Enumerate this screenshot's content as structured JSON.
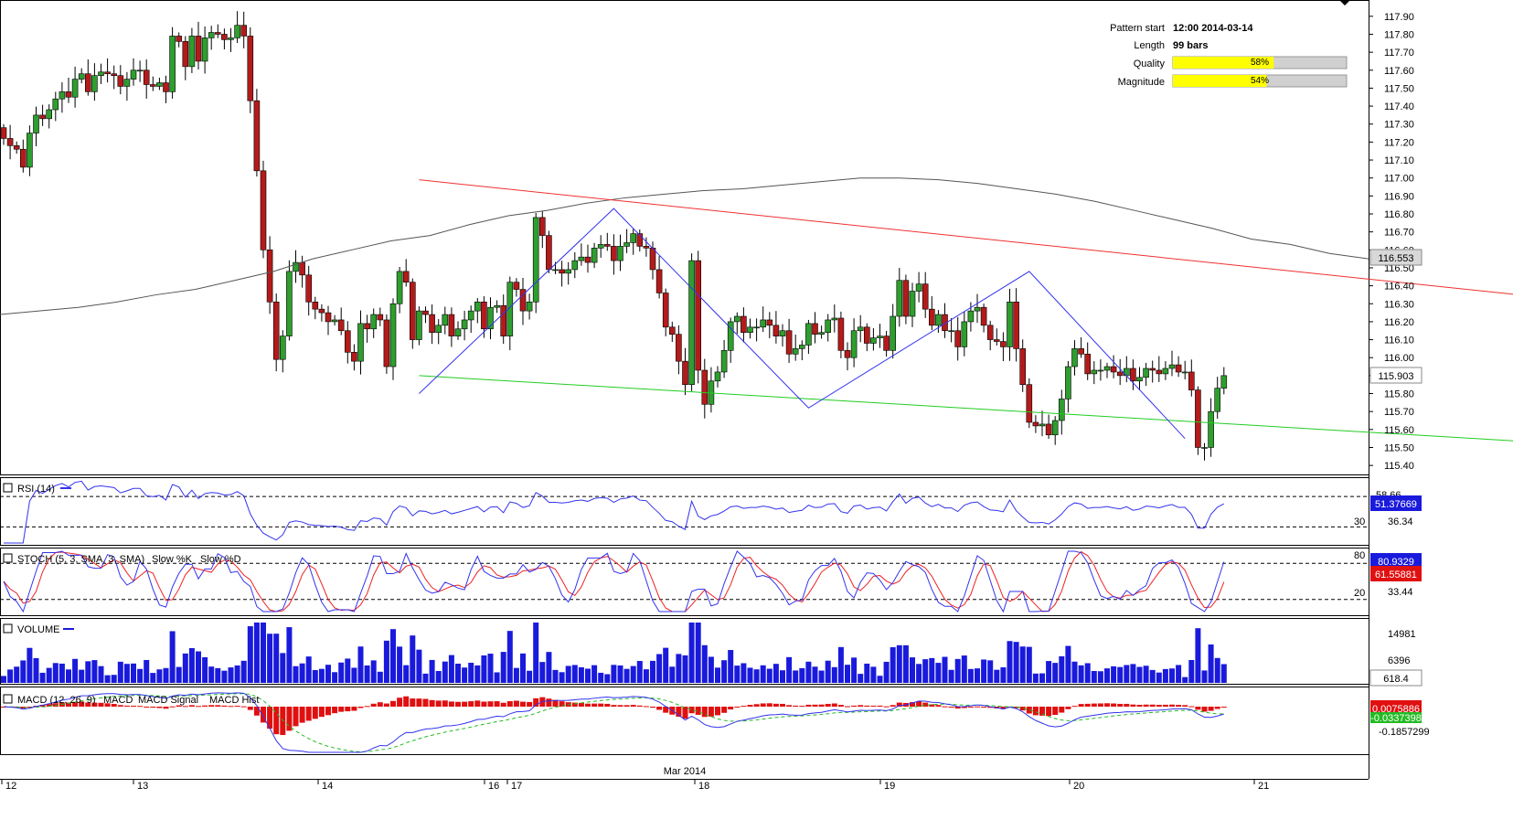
{
  "chart_data": {
    "type": "candlestick",
    "price_panel": {
      "ylim": [
        115.36,
        117.95
      ],
      "y_ticks": [
        "117.90",
        "117.80",
        "117.70",
        "117.60",
        "117.50",
        "117.40",
        "117.30",
        "117.20",
        "117.10",
        "117.00",
        "116.90",
        "116.80",
        "116.70",
        "116.60",
        "116.50",
        "116.40",
        "116.30",
        "116.20",
        "116.10",
        "116.00",
        "115.90",
        "115.80",
        "115.70",
        "115.60",
        "115.50",
        "115.40"
      ],
      "y_tick_values": [
        117.9,
        117.8,
        117.7,
        117.6,
        117.5,
        117.4,
        117.3,
        117.2,
        117.1,
        117.0,
        116.9,
        116.8,
        116.7,
        116.6,
        116.5,
        116.4,
        116.3,
        116.2,
        116.1,
        116.0,
        115.9,
        115.8,
        115.7,
        115.6,
        115.5,
        115.4
      ],
      "closes": [
        117.22,
        117.18,
        117.16,
        117.06,
        117.25,
        117.35,
        117.33,
        117.38,
        117.44,
        117.48,
        117.45,
        117.55,
        117.58,
        117.48,
        117.57,
        117.59,
        117.58,
        117.57,
        117.51,
        117.55,
        117.6,
        117.6,
        117.52,
        117.51,
        117.53,
        117.48,
        117.79,
        117.76,
        117.62,
        117.79,
        117.65,
        117.78,
        117.81,
        117.8,
        117.77,
        117.78,
        117.85,
        117.79,
        117.43,
        117.04,
        116.6,
        116.31,
        115.99,
        116.12,
        116.48,
        116.53,
        116.46,
        116.31,
        116.27,
        116.25,
        116.2,
        116.21,
        116.15,
        116.03,
        115.98,
        116.19,
        116.16,
        116.24,
        116.21,
        115.95,
        116.3,
        116.48,
        116.42,
        116.1,
        116.26,
        116.24,
        116.14,
        116.18,
        116.24,
        116.12,
        116.16,
        116.21,
        116.26,
        116.31,
        116.16,
        116.28,
        116.29,
        116.12,
        116.42,
        116.38,
        116.26,
        116.31,
        116.78,
        116.68,
        116.49,
        116.49,
        116.47,
        116.49,
        116.54,
        116.56,
        116.53,
        116.61,
        116.63,
        116.62,
        116.54,
        116.62,
        116.64,
        116.69,
        116.62,
        116.61,
        116.49,
        116.36,
        116.17,
        116.13,
        115.98,
        115.85,
        116.54,
        115.93,
        115.74,
        115.87,
        115.92,
        116.04,
        116.2,
        116.23,
        116.14,
        116.17,
        116.17,
        116.21,
        116.18,
        116.12,
        116.15,
        116.02,
        116.05,
        116.07,
        116.19,
        116.13,
        116.14,
        116.21,
        116.22,
        116.04,
        116.0,
        116.15,
        116.17,
        116.08,
        116.11,
        116.12,
        116.04,
        116.23,
        116.43,
        116.23,
        116.37,
        116.41,
        116.27,
        116.18,
        116.24,
        116.15,
        116.15,
        116.06,
        116.2,
        116.26,
        116.28,
        116.18,
        116.1,
        116.09,
        116.06,
        116.31,
        116.05,
        115.85,
        115.64,
        115.62,
        115.63,
        115.57,
        115.65,
        115.77,
        115.95,
        116.05,
        116.02,
        115.91,
        115.93,
        115.93,
        115.95,
        115.92,
        115.9,
        115.94,
        115.87,
        115.89,
        115.94,
        115.93,
        115.91,
        115.94,
        115.96,
        115.92,
        115.92,
        115.82,
        115.5,
        115.5,
        115.7,
        115.83,
        115.9
      ],
      "sma_line": [
        116.24,
        116.26,
        116.28,
        116.31,
        116.35,
        116.38,
        116.43,
        116.48,
        116.55,
        116.6,
        116.65,
        116.68,
        116.74,
        116.79,
        116.82,
        116.86,
        116.89,
        116.91,
        116.93,
        116.94,
        116.96,
        116.98,
        117.0,
        117.0,
        116.99,
        116.97,
        116.94,
        116.91,
        116.87,
        116.82,
        116.77,
        116.72,
        116.66,
        116.63,
        116.58,
        116.55
      ],
      "channel_upper": [
        [
          0,
          116.99
        ],
        [
          209,
          116.2
        ]
      ],
      "channel_lower": [
        [
          0,
          115.9
        ],
        [
          209,
          115.45
        ]
      ],
      "zigzag": [
        [
          0,
          115.8
        ],
        [
          30,
          116.83
        ],
        [
          60,
          115.72
        ],
        [
          94,
          116.48
        ],
        [
          118,
          115.55
        ]
      ],
      "last_price": "115.903",
      "sma_value": "116.553",
      "x_labels": [
        "12",
        "13",
        "14",
        "16",
        "17",
        "18",
        "19",
        "20",
        "21"
      ],
      "x_label_month": "Mar 2014"
    },
    "pattern_info": {
      "pattern_start_label": "Pattern start",
      "pattern_start": "12:00 2014-03-14",
      "length_label": "Length",
      "length": "99 bars",
      "quality_label": "Quality",
      "quality": 58,
      "quality_text": "58%",
      "magnitude_label": "Magnitude",
      "magnitude": 54,
      "magnitude_text": "54%"
    },
    "rsi": {
      "label": "RSI (14)",
      "level_upper": "58.66",
      "level_30": "30",
      "level_value": "36.34",
      "last": "51.37669"
    },
    "stoch": {
      "label_main": "STOCH (5, 3, SMA, 3, SMA)",
      "label_k": "Slow %K",
      "label_d": "Slow %D",
      "level_80": "80",
      "level_20": "20",
      "level_value": "33.44",
      "k_last": "80.9329",
      "d_last": "61.55881"
    },
    "volume": {
      "label": "VOLUME",
      "ticks": [
        "14981",
        "6396"
      ],
      "last": "618.4"
    },
    "macd": {
      "label_main": "MACD (12, 26, 9)",
      "label_macd": "MACD",
      "label_signal": "MACD Signal",
      "label_hist": "MACD Hist",
      "tick_low": "-0.1857299",
      "value_1": "0.0075886",
      "value_2": "-0.0337398"
    }
  },
  "colors": {
    "bull": "#2e9e2e",
    "bear": "#b31b1b",
    "channel_upper": "#f03030",
    "channel_lower": "#22cc22",
    "zigzag": "#3333ee",
    "sma": "#555555",
    "quality_bar": "#ffff00",
    "rsi_line": "#3333ee",
    "stoch_k": "#3333ee",
    "stoch_d": "#ee2222",
    "volume": "#1a1adc",
    "macd_hist": "#e01010",
    "macd_line": "#3333ee",
    "macd_signal": "#22bb22",
    "value_tag_blue": "#1a1adc",
    "value_tag_red": "#e01010",
    "value_tag_gray": "#d8d8d8"
  }
}
